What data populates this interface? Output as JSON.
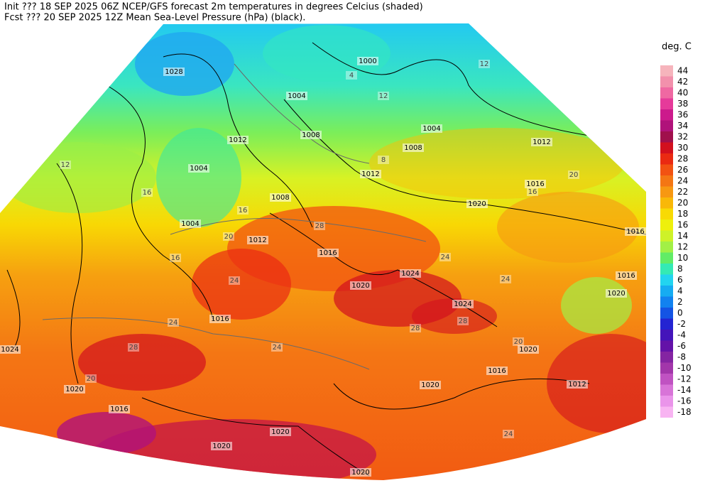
{
  "header": {
    "line1": "Init  ??? 18 SEP 2025 06Z  NCEP/GFS forecast 2m temperatures in degrees Celcius (shaded)",
    "line2": "Fcst ??? 20 SEP 2025 12Z  Mean Sea-Level Pressure (hPa) (black)."
  },
  "colorbar": {
    "title": "deg. C",
    "levels": [
      44,
      42,
      40,
      38,
      36,
      34,
      32,
      30,
      28,
      26,
      24,
      22,
      20,
      18,
      16,
      14,
      12,
      10,
      8,
      6,
      4,
      2,
      0,
      -2,
      -4,
      -6,
      -8,
      -10,
      -12,
      -14,
      -16,
      -18
    ],
    "colors": [
      "#f6b4bc",
      "#f290ac",
      "#ef68a2",
      "#e63a9a",
      "#cc1a8c",
      "#b0127a",
      "#a0104c",
      "#d2101e",
      "#ea2a12",
      "#f25212",
      "#f47614",
      "#f79812",
      "#f9b808",
      "#f8da04",
      "#eef00c",
      "#cef228",
      "#a2f046",
      "#62ec66",
      "#34eab4",
      "#22d4f0",
      "#16acf2",
      "#1282f0",
      "#1454e4",
      "#2424d2",
      "#4414ba",
      "#6412a8",
      "#8424a2",
      "#a236aa",
      "#c052c2",
      "#d874d8",
      "#ea94ea",
      "#f8b4f2"
    ]
  },
  "isobar_labels": [
    1028,
    1000,
    1004,
    1012,
    1008,
    1004,
    1008,
    1004,
    1012,
    1016,
    1024,
    1020,
    1024,
    1016,
    1020,
    1016,
    1012,
    1020,
    1020,
    1024,
    1016,
    1020,
    1020,
    1020,
    1004,
    1008,
    1012,
    1012,
    1016,
    1020,
    1016,
    1016,
    1020
  ],
  "temperature_labels": [
    12,
    12,
    16,
    20,
    16,
    24,
    28,
    24,
    28,
    24,
    28,
    24,
    24,
    20,
    16,
    8,
    4,
    12,
    20,
    24,
    28,
    20,
    16
  ]
}
